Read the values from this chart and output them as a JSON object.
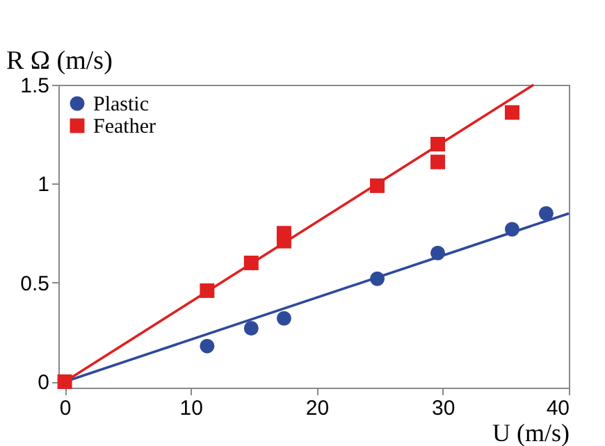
{
  "chart_data": {
    "type": "scatter",
    "xlabel": "U (m/s)",
    "ylabel": "R Ω (m/s)",
    "xlim": [
      -0.5,
      40
    ],
    "xticks": [
      0,
      10,
      20,
      30,
      40
    ],
    "ylim": [
      -0.03,
      1.5
    ],
    "yticks": [
      0,
      0.5,
      1,
      1.5
    ],
    "grid": false,
    "legend": "top left",
    "series": [
      {
        "name": "Plastic",
        "marker": "circle",
        "color": "#2e4a9a",
        "x": [
          11.3,
          14.8,
          17.4,
          24.8,
          29.6,
          35.5,
          38.2
        ],
        "values": [
          0.18,
          0.27,
          0.32,
          0.52,
          0.65,
          0.77,
          0.85
        ]
      },
      {
        "name": "Feather",
        "marker": "square",
        "color": "#e02020",
        "x": [
          0,
          11.3,
          14.8,
          17.4,
          17.4,
          24.8,
          29.6,
          29.6,
          35.5
        ],
        "values": [
          0,
          0.46,
          0.6,
          0.71,
          0.75,
          0.99,
          1.2,
          1.11,
          1.36
        ]
      },
      {
        "type": "line",
        "color": "#2e4a9a",
        "line_style": "solid",
        "x": [
          0,
          40
        ],
        "values": [
          0,
          0.85
        ]
      },
      {
        "type": "line",
        "color": "#e02020",
        "line_style": "solid",
        "x": [
          0,
          37.2
        ],
        "values": [
          0,
          1.5
        ]
      }
    ]
  }
}
